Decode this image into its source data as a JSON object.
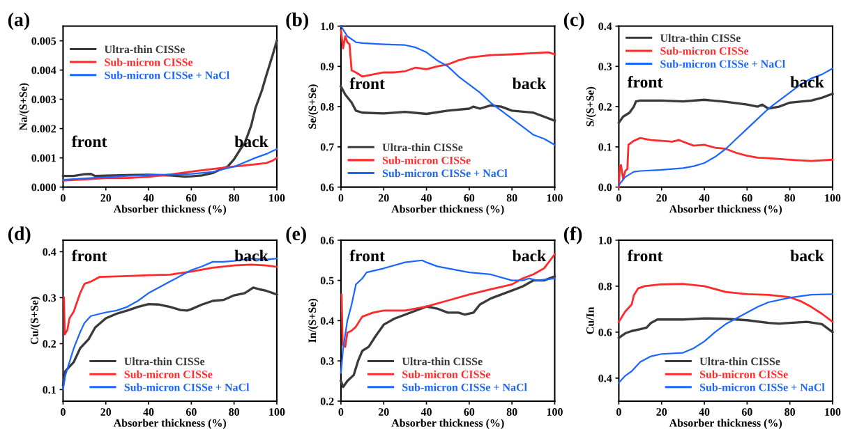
{
  "chart_data": [
    {
      "type": "line",
      "title": "(a)",
      "xlabel": "Absorber thickness (%)",
      "ylabel": "Na/(S+Se)",
      "xlim": [
        0,
        100
      ],
      "xticks": [
        0,
        20,
        40,
        60,
        80,
        100
      ],
      "ylim": [
        0,
        0.0055
      ],
      "yticks": [
        {
          "value": 0,
          "label": "0.000"
        },
        {
          "value": 0.001,
          "label": "0.001"
        },
        {
          "value": 0.002,
          "label": "0.002"
        },
        {
          "value": 0.003,
          "label": "0.003"
        },
        {
          "value": 0.004,
          "label": "0.004"
        },
        {
          "value": 0.005,
          "label": "0.005"
        }
      ],
      "legend": "top left",
      "annotations": [
        "front",
        "back"
      ],
      "series": [
        {
          "name": "Ultra-thin CISSe",
          "color": "#3a3a3a",
          "x": [
            0,
            5,
            10,
            13,
            15,
            20,
            30,
            40,
            50,
            57,
            60,
            65,
            70,
            75,
            77,
            80,
            83,
            85,
            88,
            90,
            93,
            95,
            98,
            100
          ],
          "values": [
            0.00038,
            0.00038,
            0.00044,
            0.00045,
            0.00038,
            0.00039,
            0.00041,
            0.00042,
            0.0004,
            0.00036,
            0.00037,
            0.0004,
            0.00048,
            0.00065,
            0.0007,
            0.00095,
            0.0013,
            0.0015,
            0.0021,
            0.0027,
            0.0033,
            0.0038,
            0.0045,
            0.005
          ]
        },
        {
          "name": "Sub-micron CISSe",
          "color": "#ff2a2a",
          "x": [
            0,
            10,
            20,
            30,
            40,
            50,
            60,
            70,
            80,
            90,
            95,
            98,
            100
          ],
          "values": [
            0.00022,
            0.00026,
            0.00031,
            0.00031,
            0.00035,
            0.00043,
            0.00053,
            0.00062,
            0.0007,
            0.00078,
            0.00082,
            0.0009,
            0.001
          ]
        },
        {
          "name": "Sub-micron CISSe + NaCl",
          "color": "#1a66ff",
          "x": [
            0,
            10,
            20,
            30,
            40,
            50,
            60,
            70,
            80,
            85,
            90,
            95,
            100
          ],
          "values": [
            0.00025,
            0.0003,
            0.00034,
            0.00038,
            0.00041,
            0.00043,
            0.00045,
            0.00052,
            0.0007,
            0.00085,
            0.001,
            0.00113,
            0.0013
          ]
        }
      ]
    },
    {
      "type": "line",
      "title": "(b)",
      "xlabel": "Absorber thickness (%)",
      "ylabel": "Se/(S+Se)",
      "xlim": [
        0,
        100
      ],
      "xticks": [
        0,
        20,
        40,
        60,
        80,
        100
      ],
      "ylim": [
        0.6,
        1.0
      ],
      "yticks": [
        0.6,
        0.7,
        0.8,
        0.9,
        {
          "value": 1.0,
          "label": "1.0"
        }
      ],
      "legend": "bottom left",
      "annotations": [
        "front",
        "back"
      ],
      "series": [
        {
          "name": "Ultra-thin CISSe",
          "color": "#3a3a3a",
          "x": [
            0,
            2,
            5,
            7,
            10,
            20,
            30,
            40,
            50,
            60,
            62,
            65,
            70,
            75,
            80,
            90,
            95,
            100
          ],
          "values": [
            0.85,
            0.83,
            0.81,
            0.79,
            0.785,
            0.783,
            0.787,
            0.782,
            0.79,
            0.795,
            0.8,
            0.795,
            0.803,
            0.8,
            0.79,
            0.785,
            0.775,
            0.765
          ]
        },
        {
          "name": "Sub-micron CISSe",
          "color": "#ff2a2a",
          "x": [
            0,
            1,
            2,
            3,
            4,
            5,
            7,
            10,
            15,
            20,
            25,
            30,
            35,
            40,
            45,
            50,
            55,
            60,
            65,
            70,
            80,
            90,
            97,
            100
          ],
          "values": [
            0.99,
            0.945,
            0.975,
            0.96,
            0.955,
            0.89,
            0.885,
            0.875,
            0.88,
            0.885,
            0.885,
            0.888,
            0.897,
            0.893,
            0.9,
            0.905,
            0.915,
            0.922,
            0.925,
            0.928,
            0.93,
            0.933,
            0.935,
            0.93
          ]
        },
        {
          "name": "Sub-micron CISSe + NaCl",
          "color": "#1a66ff",
          "x": [
            0,
            3,
            7,
            10,
            20,
            30,
            35,
            40,
            45,
            50,
            55,
            60,
            65,
            70,
            75,
            80,
            85,
            90,
            95,
            100
          ],
          "values": [
            1.0,
            0.975,
            0.96,
            0.958,
            0.955,
            0.953,
            0.947,
            0.935,
            0.915,
            0.9,
            0.875,
            0.855,
            0.835,
            0.81,
            0.79,
            0.77,
            0.75,
            0.73,
            0.72,
            0.705
          ]
        }
      ]
    },
    {
      "type": "line",
      "title": "(c)",
      "xlabel": "Absorber thickness (%)",
      "ylabel": "S/(S+Se)",
      "xlim": [
        0,
        100
      ],
      "xticks": [
        0,
        20,
        40,
        60,
        80,
        100
      ],
      "ylim": [
        0.0,
        0.4
      ],
      "yticks": [
        {
          "value": 0.0,
          "label": "0.0"
        },
        0.1,
        0.2,
        0.3,
        0.4
      ],
      "legend": "top left",
      "annotations": [
        "front",
        "back"
      ],
      "series": [
        {
          "name": "Ultra-thin CISSe",
          "color": "#3a3a3a",
          "x": [
            0,
            2,
            5,
            7,
            8,
            10,
            20,
            30,
            40,
            50,
            60,
            65,
            67,
            70,
            75,
            80,
            90,
            95,
            100
          ],
          "values": [
            0.16,
            0.175,
            0.185,
            0.2,
            0.213,
            0.215,
            0.215,
            0.213,
            0.217,
            0.212,
            0.205,
            0.2,
            0.205,
            0.195,
            0.2,
            0.21,
            0.215,
            0.222,
            0.232
          ]
        },
        {
          "name": "Sub-micron CISSe",
          "color": "#ff2a2a",
          "x": [
            0,
            0.5,
            1,
            2,
            3,
            4,
            4.5,
            7,
            10,
            15,
            20,
            25,
            28,
            35,
            40,
            45,
            50,
            55,
            60,
            65,
            70,
            80,
            90,
            100
          ],
          "values": [
            0.0,
            0.05,
            0.055,
            0.02,
            0.04,
            0.045,
            0.105,
            0.115,
            0.122,
            0.117,
            0.115,
            0.113,
            0.117,
            0.103,
            0.105,
            0.098,
            0.095,
            0.085,
            0.078,
            0.073,
            0.072,
            0.068,
            0.065,
            0.068
          ]
        },
        {
          "name": "Sub-micron CISSe + NaCl",
          "color": "#1a66ff",
          "x": [
            0,
            3,
            7,
            10,
            20,
            30,
            35,
            40,
            45,
            50,
            55,
            60,
            65,
            70,
            75,
            80,
            85,
            90,
            95,
            100
          ],
          "values": [
            0.005,
            0.025,
            0.038,
            0.04,
            0.043,
            0.047,
            0.052,
            0.06,
            0.075,
            0.095,
            0.12,
            0.145,
            0.17,
            0.195,
            0.215,
            0.235,
            0.255,
            0.27,
            0.28,
            0.295
          ]
        }
      ]
    },
    {
      "type": "line",
      "title": "(d)",
      "xlabel": "Absorber thickness (%)",
      "ylabel": "Cu/(S+Se)",
      "xlim": [
        0,
        100
      ],
      "xticks": [
        0,
        20,
        40,
        60,
        80,
        100
      ],
      "ylim": [
        0.075,
        0.425
      ],
      "yticks": [
        0.1,
        0.2,
        0.3,
        0.4
      ],
      "legend": "bottom",
      "annotations": [
        "front",
        "back"
      ],
      "series": [
        {
          "name": "Ultra-thin CISSe",
          "color": "#3a3a3a",
          "x": [
            0,
            1,
            3,
            5,
            8,
            10,
            12,
            15,
            20,
            25,
            30,
            35,
            40,
            45,
            50,
            55,
            58,
            60,
            65,
            70,
            75,
            80,
            85,
            89,
            92,
            95,
            100
          ],
          "values": [
            0.11,
            0.14,
            0.15,
            0.16,
            0.19,
            0.2,
            0.21,
            0.235,
            0.255,
            0.265,
            0.272,
            0.28,
            0.286,
            0.285,
            0.28,
            0.273,
            0.272,
            0.275,
            0.285,
            0.293,
            0.295,
            0.305,
            0.31,
            0.322,
            0.318,
            0.315,
            0.307
          ]
        },
        {
          "name": "Sub-micron CISSe",
          "color": "#ff2a2a",
          "x": [
            0.4,
            0.8,
            2,
            3,
            5,
            8,
            10,
            13,
            17,
            30,
            40,
            50,
            60,
            70,
            80,
            88,
            95,
            100
          ],
          "values": [
            0.3,
            0.22,
            0.23,
            0.255,
            0.27,
            0.31,
            0.33,
            0.335,
            0.345,
            0.347,
            0.349,
            0.35,
            0.357,
            0.365,
            0.37,
            0.372,
            0.37,
            0.367
          ]
        },
        {
          "name": "Sub-micron CISSe + NaCl",
          "color": "#1a66ff",
          "x": [
            0,
            1,
            3,
            5,
            8,
            10,
            13,
            20,
            25,
            30,
            35,
            40,
            50,
            60,
            65,
            70,
            75,
            80,
            88,
            95,
            100
          ],
          "values": [
            0.1,
            0.13,
            0.16,
            0.19,
            0.225,
            0.245,
            0.26,
            0.268,
            0.272,
            0.28,
            0.293,
            0.31,
            0.335,
            0.36,
            0.368,
            0.378,
            0.378,
            0.38,
            0.385,
            0.383,
            0.385
          ]
        }
      ]
    },
    {
      "type": "line",
      "title": "(e)",
      "xlabel": "Absorber thickness (%)",
      "ylabel": "In/(S+Se)",
      "xlim": [
        0,
        100
      ],
      "xticks": [
        0,
        20,
        40,
        60,
        80,
        100
      ],
      "ylim": [
        0.2,
        0.6
      ],
      "yticks": [
        0.2,
        0.3,
        0.4,
        0.5,
        0.6
      ],
      "legend": "bottom",
      "annotations": [
        "front",
        "back"
      ],
      "series": [
        {
          "name": "Ultra-thin CISSe",
          "color": "#3a3a3a",
          "x": [
            0,
            1,
            3,
            6,
            8,
            10,
            13,
            16,
            20,
            25,
            30,
            35,
            40,
            45,
            50,
            55,
            58,
            62,
            65,
            70,
            75,
            80,
            85,
            90,
            95,
            100
          ],
          "values": [
            0.25,
            0.235,
            0.25,
            0.265,
            0.3,
            0.325,
            0.335,
            0.36,
            0.39,
            0.405,
            0.415,
            0.425,
            0.435,
            0.43,
            0.42,
            0.42,
            0.415,
            0.42,
            0.44,
            0.455,
            0.465,
            0.475,
            0.485,
            0.5,
            0.5,
            0.51
          ]
        },
        {
          "name": "Sub-micron CISSe",
          "color": "#ff2a2a",
          "x": [
            0.3,
            0.8,
            2,
            3,
            5,
            7,
            10,
            15,
            20,
            30,
            40,
            50,
            60,
            70,
            80,
            85,
            90,
            95,
            100
          ],
          "values": [
            0.465,
            0.34,
            0.335,
            0.37,
            0.375,
            0.385,
            0.41,
            0.42,
            0.425,
            0.425,
            0.435,
            0.45,
            0.465,
            0.478,
            0.49,
            0.505,
            0.515,
            0.53,
            0.565
          ]
        },
        {
          "name": "Sub-micron CISSe + NaCl",
          "color": "#1a66ff",
          "x": [
            0,
            1,
            3,
            5,
            7,
            10,
            12,
            20,
            30,
            38,
            40,
            45,
            50,
            60,
            70,
            80,
            85,
            88,
            92,
            100
          ],
          "values": [
            0.27,
            0.33,
            0.4,
            0.44,
            0.49,
            0.505,
            0.52,
            0.53,
            0.545,
            0.55,
            0.545,
            0.535,
            0.53,
            0.52,
            0.515,
            0.5,
            0.5,
            0.505,
            0.5,
            0.505
          ]
        }
      ]
    },
    {
      "type": "line",
      "title": "(f)",
      "xlabel": "Absorber thickness (%)",
      "ylabel": "Cu/In",
      "xlim": [
        0,
        100
      ],
      "xticks": [
        0,
        20,
        40,
        60,
        80,
        100
      ],
      "ylim": [
        0.3,
        1.0
      ],
      "yticks": [
        0.4,
        0.6,
        0.8,
        {
          "value": 1.0,
          "label": "1.0"
        }
      ],
      "legend": "bottom right",
      "annotations": [
        "front",
        "back"
      ],
      "series": [
        {
          "name": "Ultra-thin CISSe",
          "color": "#3a3a3a",
          "x": [
            0,
            3,
            6,
            10,
            13,
            15,
            18,
            30,
            40,
            50,
            60,
            70,
            75,
            80,
            88,
            95,
            100
          ],
          "values": [
            0.575,
            0.595,
            0.605,
            0.613,
            0.62,
            0.64,
            0.655,
            0.655,
            0.66,
            0.658,
            0.652,
            0.64,
            0.637,
            0.64,
            0.645,
            0.635,
            0.6
          ]
        },
        {
          "name": "Sub-micron CISSe",
          "color": "#ff2a2a",
          "x": [
            0,
            3,
            6,
            7,
            9,
            12,
            20,
            30,
            40,
            50,
            60,
            70,
            80,
            85,
            90,
            95,
            100
          ],
          "values": [
            0.645,
            0.69,
            0.72,
            0.76,
            0.79,
            0.8,
            0.808,
            0.81,
            0.8,
            0.775,
            0.765,
            0.762,
            0.752,
            0.735,
            0.71,
            0.68,
            0.645
          ]
        },
        {
          "name": "Sub-micron CISSe + NaCl",
          "color": "#1a66ff",
          "x": [
            0,
            3,
            6,
            10,
            15,
            20,
            30,
            35,
            40,
            45,
            50,
            55,
            60,
            65,
            70,
            80,
            90,
            100
          ],
          "values": [
            0.38,
            0.41,
            0.43,
            0.47,
            0.495,
            0.505,
            0.51,
            0.53,
            0.56,
            0.6,
            0.635,
            0.66,
            0.685,
            0.71,
            0.73,
            0.75,
            0.763,
            0.765
          ]
        }
      ]
    }
  ]
}
